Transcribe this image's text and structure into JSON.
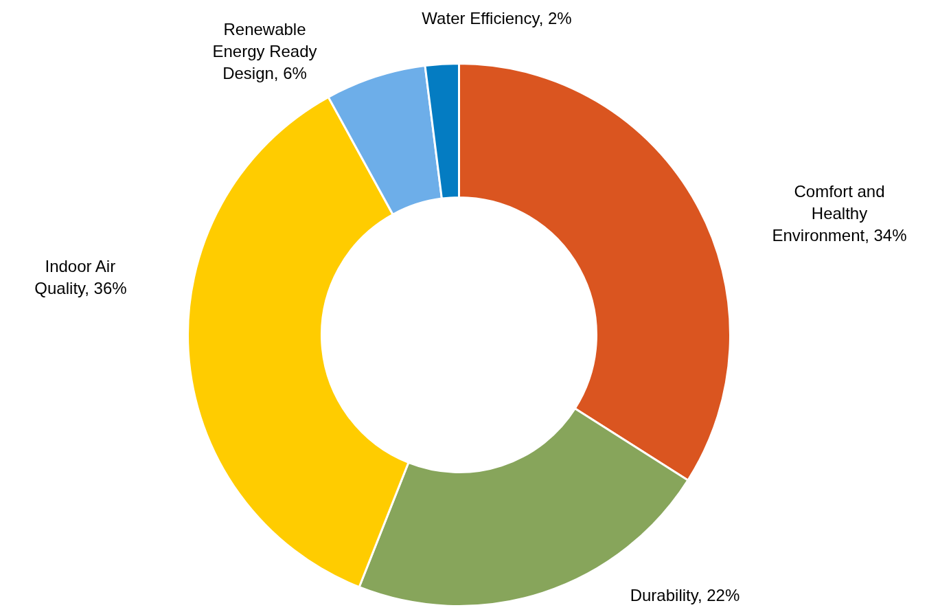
{
  "chart_data": {
    "type": "donut",
    "categories": [
      "Comfort and Healthy Environment",
      "Durability",
      "Indoor Air Quality",
      "Renewable Energy Ready Design",
      "Water Efficiency"
    ],
    "values": [
      34,
      22,
      36,
      6,
      2
    ],
    "value_labels": [
      "34%",
      "22%",
      "36%",
      "6%",
      "2%"
    ],
    "colors": [
      "#da5520",
      "#87a55b",
      "#ffcc00",
      "#6daee9",
      "#047cc2"
    ]
  }
}
